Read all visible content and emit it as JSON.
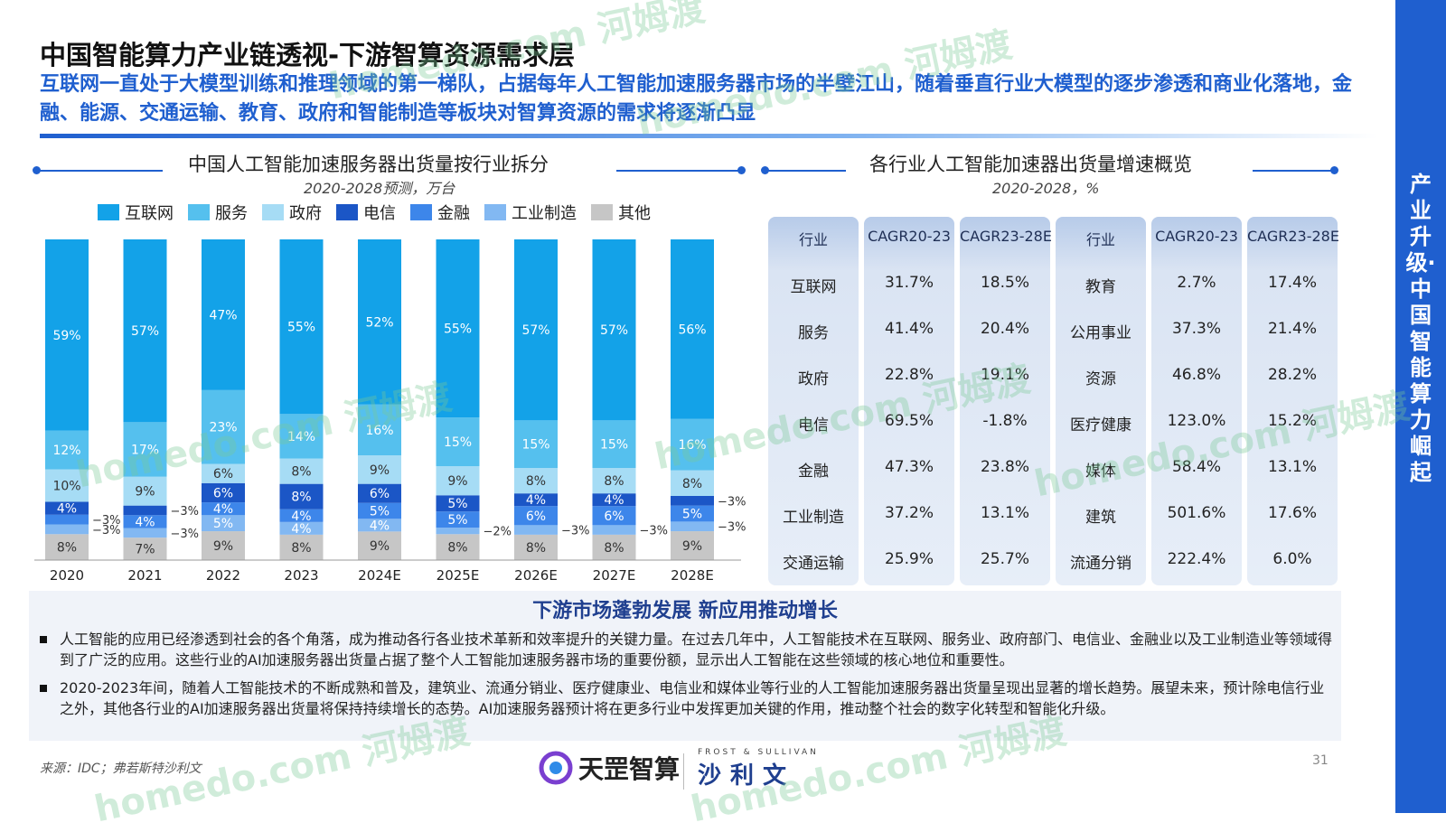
{
  "page": {
    "title": "中国智能算力产业链透视-下游智算资源需求层",
    "subtitle": "互联网一直处于大模型训练和推理领域的第一梯队，占据每年人工智能加速服务器市场的半壁江山，随着垂直行业大模型的逐步渗透和商业化落地，金融、能源、交通运输、教育、政府和智能制造等板块对智算资源的需求将逐渐凸显",
    "side_title": "产业升级·中国智能算力崛起",
    "page_number": "31",
    "source": "来源：IDC；弗若斯特沙利文",
    "watermark": "homedo.com 河姆渡"
  },
  "colors": {
    "brand_blue": "#1f5fcf",
    "internet": "#13a2e8",
    "services": "#55c0ee",
    "government": "#a6dcf5",
    "telecom": "#1b56c6",
    "finance": "#3d86ea",
    "manufacturing": "#82b8f2",
    "other": "#c6c6c6"
  },
  "left_section": {
    "title": "中国人工智能加速服务器出货量按行业拆分",
    "subtitle": "2020-2028预测，万台"
  },
  "right_section": {
    "title": "各行业人工智能加速器出货量增速概览",
    "subtitle": "2020-2028，%"
  },
  "chart_data": {
    "type": "bar",
    "stacked": true,
    "normalized_percent": true,
    "title": "中国人工智能加速服务器出货量按行业拆分",
    "subtitle": "2020-2028预测，万台",
    "categories": [
      "2020",
      "2021",
      "2022",
      "2023",
      "2024E",
      "2025E",
      "2026E",
      "2027E",
      "2028E"
    ],
    "series": [
      {
        "name": "其他",
        "color": "#c6c6c6",
        "values": [
          8,
          7,
          9,
          8,
          9,
          8,
          8,
          8,
          9
        ]
      },
      {
        "name": "工业制造",
        "color": "#82b8f2",
        "values": [
          3,
          3,
          5,
          4,
          4,
          2,
          3,
          3,
          3
        ]
      },
      {
        "name": "金融",
        "color": "#3d86ea",
        "values": [
          3,
          4,
          4,
          4,
          5,
          5,
          6,
          6,
          5
        ]
      },
      {
        "name": "电信",
        "color": "#1b56c6",
        "values": [
          4,
          3,
          6,
          8,
          6,
          5,
          4,
          4,
          3
        ]
      },
      {
        "name": "政府",
        "color": "#a6dcf5",
        "values": [
          10,
          9,
          6,
          8,
          9,
          9,
          8,
          8,
          8
        ]
      },
      {
        "name": "服务",
        "color": "#55c0ee",
        "values": [
          12,
          17,
          23,
          14,
          16,
          15,
          15,
          15,
          16
        ]
      },
      {
        "name": "互联网",
        "color": "#13a2e8",
        "values": [
          59,
          57,
          47,
          55,
          52,
          55,
          57,
          57,
          56
        ]
      }
    ],
    "legend": [
      "互联网",
      "服务",
      "政府",
      "电信",
      "金融",
      "工业制造",
      "其他"
    ],
    "legend_position": "top",
    "ylim": [
      0,
      100
    ],
    "grid": false
  },
  "table": {
    "headers": [
      "行业",
      "CAGR20-23",
      "CAGR23-28E",
      "行业",
      "CAGR20-23",
      "CAGR23-28E"
    ],
    "rows": [
      [
        "互联网",
        "31.7%",
        "18.5%",
        "教育",
        "2.7%",
        "17.4%"
      ],
      [
        "服务",
        "41.4%",
        "20.4%",
        "公用事业",
        "37.3%",
        "21.4%"
      ],
      [
        "政府",
        "22.8%",
        "19.1%",
        "资源",
        "46.8%",
        "28.2%"
      ],
      [
        "电信",
        "69.5%",
        "-1.8%",
        "医疗健康",
        "123.0%",
        "15.2%"
      ],
      [
        "金融",
        "47.3%",
        "23.8%",
        "媒体",
        "58.4%",
        "13.1%"
      ],
      [
        "工业制造",
        "37.2%",
        "13.1%",
        "建筑",
        "501.6%",
        "17.6%"
      ],
      [
        "交通运输",
        "25.9%",
        "25.7%",
        "流通分销",
        "222.4%",
        "6.0%"
      ]
    ]
  },
  "bottom": {
    "title": "下游市场蓬勃发展 新应用推动增长",
    "bullets": [
      "人工智能的应用已经渗透到社会的各个角落，成为推动各行各业技术革新和效率提升的关键力量。在过去几年中，人工智能技术在互联网、服务业、政府部门、电信业、金融业以及工业制造业等领域得到了广泛的应用。这些行业的AI加速服务器出货量占据了整个人工智能加速服务器市场的重要份额，显示出人工智能在这些领域的核心地位和重要性。",
      "2020-2023年间，随着人工智能技术的不断成熟和普及，建筑业、流通分销业、医疗健康业、电信业和媒体业等行业的人工智能加速服务器出货量呈现出显著的增长趋势。展望未来，预计除电信行业之外，其他各行业的AI加速服务器出货量将保持持续增长的态势。AI加速服务器预计将在更多行业中发挥更加关键的作用，推动整个社会的数字化转型和智能化升级。"
    ]
  },
  "logos": {
    "tianhai": "天罡智算",
    "frost_small": "FROST & SULLIVAN",
    "frost_big": "沙利文"
  }
}
